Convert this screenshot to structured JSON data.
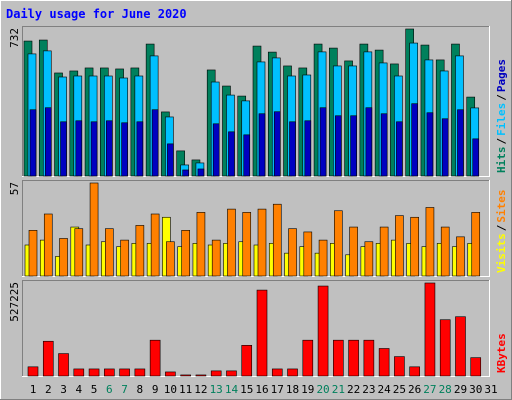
{
  "title": "Daily usage for June 2020",
  "chart_data": [
    {
      "type": "bar",
      "ylim": [
        0,
        732
      ],
      "legend_separator": "/",
      "series": [
        {
          "name": "Hits",
          "color": "#00805c",
          "values": [
            672,
            677,
            513,
            523,
            538,
            538,
            533,
            538,
            657,
            319,
            125,
            80,
            528,
            448,
            398,
            647,
            617,
            548,
            538,
            657,
            637,
            573,
            657,
            627,
            558,
            732,
            652,
            578,
            657,
            393,
            null
          ]
        },
        {
          "name": "Files",
          "color": "#00c0ff",
          "values": [
            608,
            623,
            493,
            498,
            498,
            498,
            488,
            498,
            598,
            294,
            55,
            65,
            468,
            403,
            374,
            568,
            588,
            498,
            503,
            618,
            548,
            548,
            618,
            563,
            498,
            662,
            578,
            523,
            598,
            339,
            null
          ]
        },
        {
          "name": "Pages",
          "color": "#0000c0",
          "values": [
            330,
            340,
            270,
            275,
            270,
            275,
            265,
            270,
            330,
            160,
            30,
            35,
            260,
            220,
            205,
            310,
            320,
            270,
            275,
            340,
            300,
            300,
            340,
            310,
            270,
            360,
            315,
            285,
            330,
            185,
            null
          ]
        }
      ]
    },
    {
      "type": "bar",
      "ylim": [
        0,
        57
      ],
      "legend_separator": "/",
      "series": [
        {
          "name": "Visits",
          "color": "#ffff00",
          "values": [
            19,
            22,
            12,
            30,
            19,
            21,
            18,
            20,
            20,
            36,
            18,
            20,
            19,
            20,
            21,
            19,
            20,
            14,
            18,
            14,
            20,
            13,
            18,
            20,
            22,
            20,
            18,
            20,
            18,
            20,
            null
          ]
        },
        {
          "name": "Sites",
          "color": "#ff8000",
          "values": [
            28,
            38,
            23,
            29,
            57,
            29,
            22,
            31,
            38,
            21,
            28,
            39,
            22,
            41,
            39,
            41,
            44,
            29,
            27,
            22,
            40,
            30,
            21,
            30,
            37,
            36,
            42,
            30,
            24,
            39,
            null
          ]
        }
      ]
    },
    {
      "type": "bar",
      "ylim": [
        0,
        527225
      ],
      "categories": [
        "1",
        "2",
        "3",
        "4",
        "5",
        "6",
        "7",
        "8",
        "9",
        "10",
        "11",
        "12",
        "13",
        "14",
        "15",
        "16",
        "17",
        "18",
        "19",
        "20",
        "21",
        "22",
        "23",
        "24",
        "25",
        "26",
        "27",
        "28",
        "29",
        "30",
        "31"
      ],
      "category_colors": [
        "#000000",
        "#000000",
        "#000000",
        "#000000",
        "#000000",
        "#00805c",
        "#00805c",
        "#000000",
        "#000000",
        "#000000",
        "#000000",
        "#000000",
        "#00805c",
        "#00805c",
        "#000000",
        "#000000",
        "#000000",
        "#000000",
        "#000000",
        "#00805c",
        "#00805c",
        "#000000",
        "#000000",
        "#000000",
        "#000000",
        "#000000",
        "#00805c",
        "#00805c",
        "#000000",
        "#000000",
        "#000000"
      ],
      "series": [
        {
          "name": "KBytes",
          "color": "#ff0000",
          "values": [
            52000,
            197000,
            127000,
            40000,
            40000,
            40000,
            40000,
            40000,
            203000,
            23000,
            6000,
            6000,
            29000,
            29000,
            174000,
            487000,
            40000,
            40000,
            203000,
            510000,
            203000,
            203000,
            203000,
            156000,
            110000,
            52000,
            527225,
            319000,
            336000,
            104000,
            null
          ]
        }
      ]
    }
  ]
}
